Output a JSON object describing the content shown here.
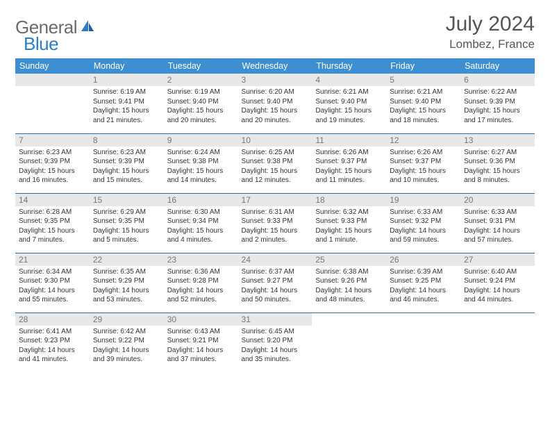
{
  "logo": {
    "text1": "General",
    "text2": "Blue"
  },
  "title": "July 2024",
  "location": "Lombez, France",
  "colors": {
    "header_bg": "#3d8fd1",
    "header_text": "#ffffff",
    "daynum_bg": "#e8e8e8",
    "daynum_text": "#777777",
    "border": "#2a6fa8",
    "body_text": "#333333",
    "logo_gray": "#6b6b6b",
    "logo_blue": "#2a7fc9"
  },
  "weekdays": [
    "Sunday",
    "Monday",
    "Tuesday",
    "Wednesday",
    "Thursday",
    "Friday",
    "Saturday"
  ],
  "weeks": [
    [
      null,
      {
        "n": "1",
        "sr": "Sunrise: 6:19 AM",
        "ss": "Sunset: 9:41 PM",
        "d1": "Daylight: 15 hours",
        "d2": "and 21 minutes."
      },
      {
        "n": "2",
        "sr": "Sunrise: 6:19 AM",
        "ss": "Sunset: 9:40 PM",
        "d1": "Daylight: 15 hours",
        "d2": "and 20 minutes."
      },
      {
        "n": "3",
        "sr": "Sunrise: 6:20 AM",
        "ss": "Sunset: 9:40 PM",
        "d1": "Daylight: 15 hours",
        "d2": "and 20 minutes."
      },
      {
        "n": "4",
        "sr": "Sunrise: 6:21 AM",
        "ss": "Sunset: 9:40 PM",
        "d1": "Daylight: 15 hours",
        "d2": "and 19 minutes."
      },
      {
        "n": "5",
        "sr": "Sunrise: 6:21 AM",
        "ss": "Sunset: 9:40 PM",
        "d1": "Daylight: 15 hours",
        "d2": "and 18 minutes."
      },
      {
        "n": "6",
        "sr": "Sunrise: 6:22 AM",
        "ss": "Sunset: 9:39 PM",
        "d1": "Daylight: 15 hours",
        "d2": "and 17 minutes."
      }
    ],
    [
      {
        "n": "7",
        "sr": "Sunrise: 6:23 AM",
        "ss": "Sunset: 9:39 PM",
        "d1": "Daylight: 15 hours",
        "d2": "and 16 minutes."
      },
      {
        "n": "8",
        "sr": "Sunrise: 6:23 AM",
        "ss": "Sunset: 9:39 PM",
        "d1": "Daylight: 15 hours",
        "d2": "and 15 minutes."
      },
      {
        "n": "9",
        "sr": "Sunrise: 6:24 AM",
        "ss": "Sunset: 9:38 PM",
        "d1": "Daylight: 15 hours",
        "d2": "and 14 minutes."
      },
      {
        "n": "10",
        "sr": "Sunrise: 6:25 AM",
        "ss": "Sunset: 9:38 PM",
        "d1": "Daylight: 15 hours",
        "d2": "and 12 minutes."
      },
      {
        "n": "11",
        "sr": "Sunrise: 6:26 AM",
        "ss": "Sunset: 9:37 PM",
        "d1": "Daylight: 15 hours",
        "d2": "and 11 minutes."
      },
      {
        "n": "12",
        "sr": "Sunrise: 6:26 AM",
        "ss": "Sunset: 9:37 PM",
        "d1": "Daylight: 15 hours",
        "d2": "and 10 minutes."
      },
      {
        "n": "13",
        "sr": "Sunrise: 6:27 AM",
        "ss": "Sunset: 9:36 PM",
        "d1": "Daylight: 15 hours",
        "d2": "and 8 minutes."
      }
    ],
    [
      {
        "n": "14",
        "sr": "Sunrise: 6:28 AM",
        "ss": "Sunset: 9:35 PM",
        "d1": "Daylight: 15 hours",
        "d2": "and 7 minutes."
      },
      {
        "n": "15",
        "sr": "Sunrise: 6:29 AM",
        "ss": "Sunset: 9:35 PM",
        "d1": "Daylight: 15 hours",
        "d2": "and 5 minutes."
      },
      {
        "n": "16",
        "sr": "Sunrise: 6:30 AM",
        "ss": "Sunset: 9:34 PM",
        "d1": "Daylight: 15 hours",
        "d2": "and 4 minutes."
      },
      {
        "n": "17",
        "sr": "Sunrise: 6:31 AM",
        "ss": "Sunset: 9:33 PM",
        "d1": "Daylight: 15 hours",
        "d2": "and 2 minutes."
      },
      {
        "n": "18",
        "sr": "Sunrise: 6:32 AM",
        "ss": "Sunset: 9:33 PM",
        "d1": "Daylight: 15 hours",
        "d2": "and 1 minute."
      },
      {
        "n": "19",
        "sr": "Sunrise: 6:33 AM",
        "ss": "Sunset: 9:32 PM",
        "d1": "Daylight: 14 hours",
        "d2": "and 59 minutes."
      },
      {
        "n": "20",
        "sr": "Sunrise: 6:33 AM",
        "ss": "Sunset: 9:31 PM",
        "d1": "Daylight: 14 hours",
        "d2": "and 57 minutes."
      }
    ],
    [
      {
        "n": "21",
        "sr": "Sunrise: 6:34 AM",
        "ss": "Sunset: 9:30 PM",
        "d1": "Daylight: 14 hours",
        "d2": "and 55 minutes."
      },
      {
        "n": "22",
        "sr": "Sunrise: 6:35 AM",
        "ss": "Sunset: 9:29 PM",
        "d1": "Daylight: 14 hours",
        "d2": "and 53 minutes."
      },
      {
        "n": "23",
        "sr": "Sunrise: 6:36 AM",
        "ss": "Sunset: 9:28 PM",
        "d1": "Daylight: 14 hours",
        "d2": "and 52 minutes."
      },
      {
        "n": "24",
        "sr": "Sunrise: 6:37 AM",
        "ss": "Sunset: 9:27 PM",
        "d1": "Daylight: 14 hours",
        "d2": "and 50 minutes."
      },
      {
        "n": "25",
        "sr": "Sunrise: 6:38 AM",
        "ss": "Sunset: 9:26 PM",
        "d1": "Daylight: 14 hours",
        "d2": "and 48 minutes."
      },
      {
        "n": "26",
        "sr": "Sunrise: 6:39 AM",
        "ss": "Sunset: 9:25 PM",
        "d1": "Daylight: 14 hours",
        "d2": "and 46 minutes."
      },
      {
        "n": "27",
        "sr": "Sunrise: 6:40 AM",
        "ss": "Sunset: 9:24 PM",
        "d1": "Daylight: 14 hours",
        "d2": "and 44 minutes."
      }
    ],
    [
      {
        "n": "28",
        "sr": "Sunrise: 6:41 AM",
        "ss": "Sunset: 9:23 PM",
        "d1": "Daylight: 14 hours",
        "d2": "and 41 minutes."
      },
      {
        "n": "29",
        "sr": "Sunrise: 6:42 AM",
        "ss": "Sunset: 9:22 PM",
        "d1": "Daylight: 14 hours",
        "d2": "and 39 minutes."
      },
      {
        "n": "30",
        "sr": "Sunrise: 6:43 AM",
        "ss": "Sunset: 9:21 PM",
        "d1": "Daylight: 14 hours",
        "d2": "and 37 minutes."
      },
      {
        "n": "31",
        "sr": "Sunrise: 6:45 AM",
        "ss": "Sunset: 9:20 PM",
        "d1": "Daylight: 14 hours",
        "d2": "and 35 minutes."
      },
      null,
      null,
      null
    ]
  ]
}
